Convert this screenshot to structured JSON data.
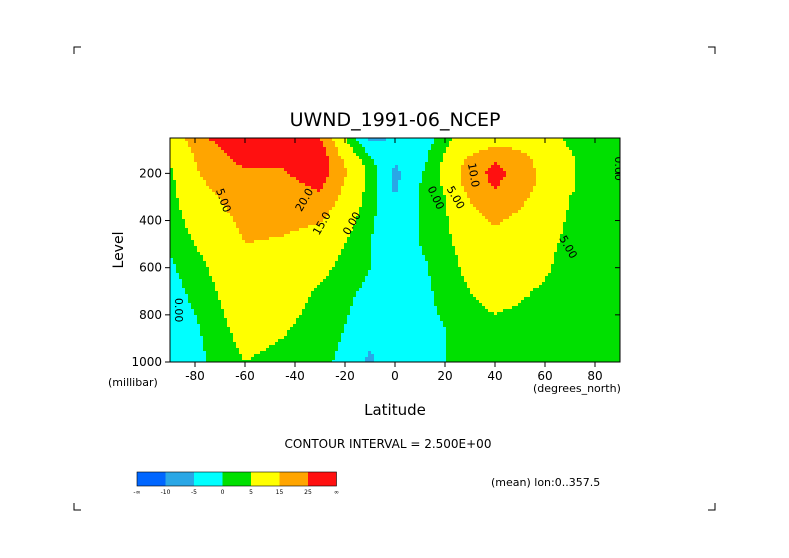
{
  "chart_data": {
    "type": "heatmap",
    "title": "UWND_1991-06_NCEP",
    "xlabel": "Latitude",
    "ylabel": "Level",
    "x_unit_label": "(degrees_north)",
    "y_unit_label": "(millibar)",
    "xlim": [
      -90,
      90
    ],
    "ylim": [
      1000,
      50
    ],
    "x_ticks": [
      -80,
      -60,
      -40,
      -20,
      0,
      20,
      40,
      60,
      80
    ],
    "y_ticks": [
      200,
      400,
      600,
      800,
      1000
    ],
    "contour_interval_text": "CONTOUR INTERVAL = 2.500E+00",
    "mean_text": "(mean) lon:0..357.5",
    "contour_labels": [
      {
        "text": "5.00",
        "lat": -70,
        "level": 320,
        "rotate": 70
      },
      {
        "text": "0.00",
        "lat": -88,
        "level": 780,
        "rotate": 90
      },
      {
        "text": "0.00",
        "lat": -16,
        "level": 420,
        "rotate": -60
      },
      {
        "text": "0.00",
        "lat": 15,
        "level": 310,
        "rotate": 65
      },
      {
        "text": "5.00",
        "lat": 23,
        "level": 310,
        "rotate": 60
      },
      {
        "text": "10.0",
        "lat": 30,
        "level": 210,
        "rotate": 80
      },
      {
        "text": "5.00",
        "lat": 68,
        "level": 520,
        "rotate": 60
      },
      {
        "text": "0.00",
        "lat": 88,
        "level": 180,
        "rotate": 90
      },
      {
        "text": "20.0",
        "lat": -35,
        "level": 320,
        "rotate": -60
      },
      {
        "text": "15.0",
        "lat": -28,
        "level": 420,
        "rotate": -60
      }
    ],
    "colorbar": {
      "colors": [
        "#0066ff",
        "#2aa7e6",
        "#00ffff",
        "#00e000",
        "#ffff00",
        "#ffa500",
        "#ff1010"
      ],
      "tick_labels": [
        "-∞",
        "-10",
        "-5",
        "0",
        "5",
        "15",
        "25",
        "∞"
      ]
    },
    "colormap_levels": [
      -10,
      -5,
      0,
      5,
      15,
      25
    ],
    "grid": {
      "lats": [
        -90,
        -75,
        -60,
        -45,
        -30,
        -20,
        -10,
        0,
        10,
        20,
        30,
        40,
        50,
        60,
        70,
        80,
        90
      ],
      "levels": [
        50,
        100,
        150,
        200,
        250,
        300,
        400,
        500,
        600,
        700,
        850,
        1000
      ],
      "values": [
        [
          8,
          25,
          31,
          26,
          25,
          5,
          -6,
          -5,
          -5,
          3,
          8,
          10,
          9,
          7,
          4,
          1,
          0
        ],
        [
          6,
          22,
          30,
          28,
          30,
          8,
          -2,
          -3,
          -3,
          5,
          12,
          17,
          15,
          9,
          5,
          2,
          0
        ],
        [
          5,
          20,
          27,
          27,
          32,
          14,
          1,
          -5,
          -2,
          6,
          18,
          25,
          19,
          11,
          6,
          2,
          0
        ],
        [
          4,
          18,
          24,
          24,
          30,
          16,
          3,
          -6,
          -1,
          7,
          20,
          28,
          21,
          12,
          6,
          2,
          0
        ],
        [
          3,
          15,
          22,
          22,
          27,
          14,
          3,
          -6,
          0,
          6,
          19,
          26,
          20,
          12,
          6,
          2,
          0
        ],
        [
          3,
          13,
          20,
          20,
          23,
          12,
          2,
          -5,
          0,
          5,
          16,
          22,
          17,
          11,
          5,
          2,
          0
        ],
        [
          2,
          10,
          17,
          17,
          16,
          8,
          1,
          -4,
          0,
          4,
          12,
          16,
          13,
          9,
          4,
          1,
          0
        ],
        [
          1,
          7,
          15,
          14,
          10,
          5,
          0,
          -3,
          0,
          3,
          9,
          12,
          10,
          7,
          3,
          1,
          0
        ],
        [
          -1,
          5,
          13,
          12,
          7,
          3,
          0,
          -3,
          -1,
          2,
          7,
          9,
          8,
          6,
          2,
          1,
          0
        ],
        [
          -2,
          3,
          11,
          9,
          4,
          1,
          -1,
          -2,
          -1,
          1,
          5,
          7,
          6,
          4,
          2,
          0,
          0
        ],
        [
          -4,
          1,
          8,
          6,
          2,
          0,
          -3,
          -1,
          -1,
          0,
          3,
          4,
          3,
          2,
          1,
          0,
          0
        ],
        [
          -3,
          0,
          5,
          3,
          1,
          -1,
          -6,
          -1,
          -1,
          0,
          1,
          2,
          1,
          1,
          0,
          0,
          0
        ]
      ]
    }
  }
}
